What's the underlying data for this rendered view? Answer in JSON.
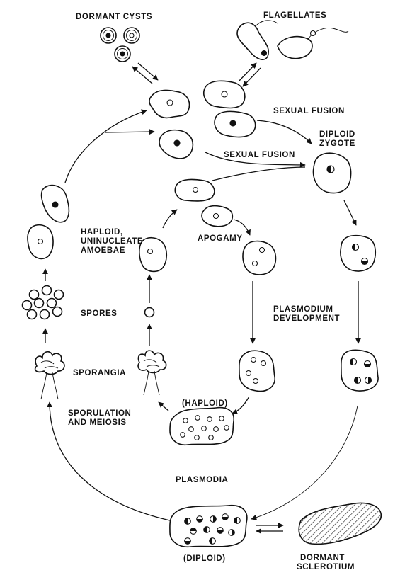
{
  "labels": {
    "dormant_cysts": "DORMANT CYSTS",
    "flagellates": "FLAGELLATES",
    "sexual_fusion_1": "SEXUAL FUSION",
    "diploid_zygote_line1": "DIPLOID",
    "diploid_zygote_line2": "ZYGOTE",
    "sexual_fusion_2": "SEXUAL FUSION",
    "haploid_amoebae_line1": "HAPLOID,",
    "haploid_amoebae_line2": "UNINUCLEATE",
    "haploid_amoebae_line3": "AMOEBAE",
    "apogamy": "APOGAMY",
    "spores": "SPORES",
    "plasmodium_dev_line1": "PLASMODIUM",
    "plasmodium_dev_line2": "DEVELOPMENT",
    "sporangia": "SPORANGIA",
    "haploid": "(HAPLOID)",
    "sporulation_line1": "SPORULATION",
    "sporulation_line2": "AND MEIOSIS",
    "plasmodia": "PLASMODIA",
    "diploid": "(DIPLOID)",
    "dormant_sclerotium_line1": "DORMANT",
    "dormant_sclerotium_line2": "SCLEROTIUM"
  }
}
